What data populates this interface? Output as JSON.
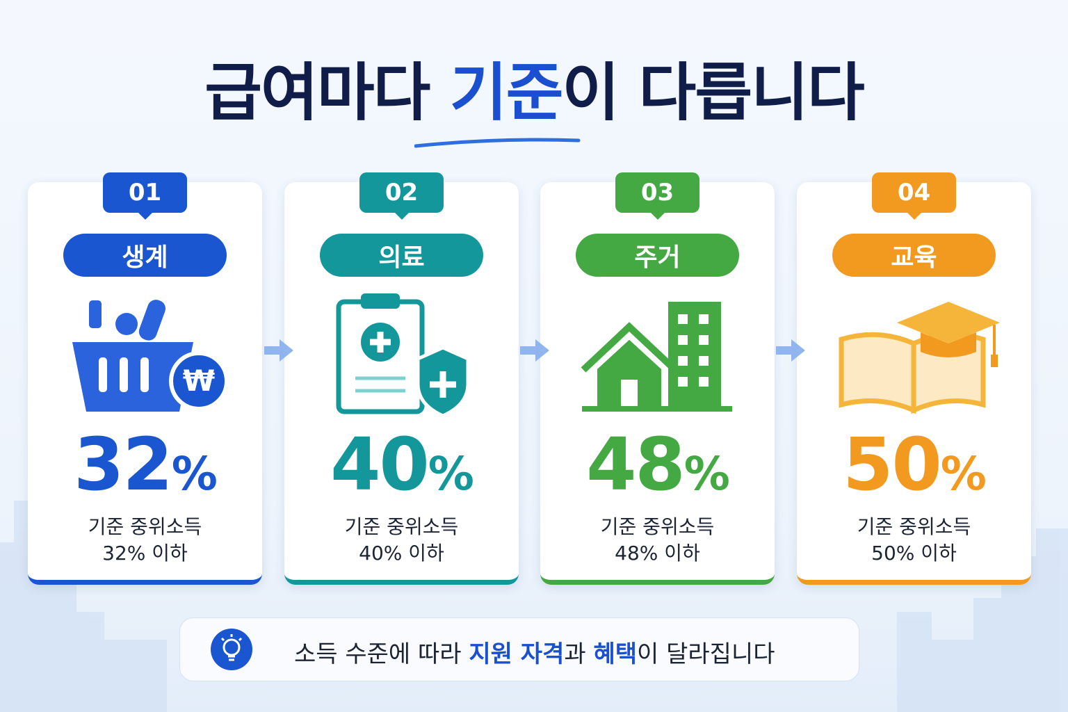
{
  "title": {
    "before": "급여마다 ",
    "highlight": "기준",
    "after": "이 다릅니다"
  },
  "cards": [
    {
      "number": "01",
      "label": "생계",
      "percent": "32",
      "unit": "%",
      "desc_line1": "기준 중위소득",
      "desc_line2": "32% 이하"
    },
    {
      "number": "02",
      "label": "의료",
      "percent": "40",
      "unit": "%",
      "desc_line1": "기준 중위소득",
      "desc_line2": "40% 이하"
    },
    {
      "number": "03",
      "label": "주거",
      "percent": "48",
      "unit": "%",
      "desc_line1": "기준 중위소득",
      "desc_line2": "48% 이하"
    },
    {
      "number": "04",
      "label": "교육",
      "percent": "50",
      "unit": "%",
      "desc_line1": "기준 중위소득",
      "desc_line2": "50% 이하"
    }
  ],
  "footer": {
    "part1": "소득 수준에 따라 ",
    "part2": "지원 자격",
    "part3": "과 ",
    "part4": "혜택",
    "part5": "이 달라집니다"
  }
}
